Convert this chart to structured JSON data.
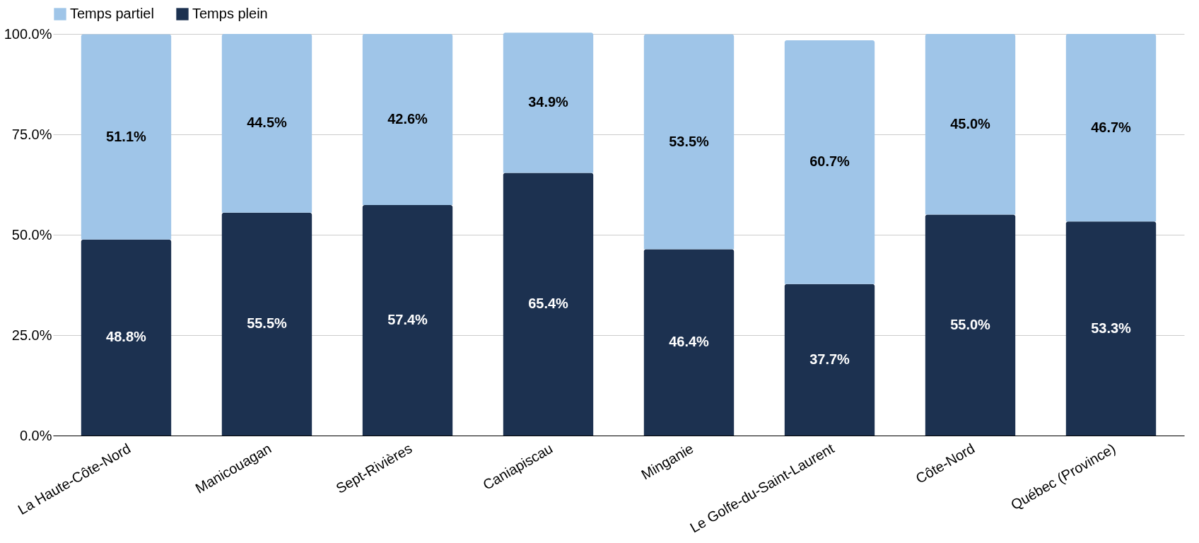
{
  "chart_data": {
    "type": "bar",
    "stacked": true,
    "categories": [
      "La Haute-Côte-Nord",
      "Manicouagan",
      "Sept-Rivières",
      "Caniapiscau",
      "Minganie",
      "Le Golfe-du-Saint-Laurent",
      "Côte-Nord",
      "Québec (Province)"
    ],
    "series": [
      {
        "name": "Temps plein",
        "color": "#1c3150",
        "values": [
          48.8,
          55.5,
          57.4,
          65.4,
          46.4,
          37.7,
          55.0,
          53.3
        ],
        "value_labels": [
          "48.8%",
          "55.5%",
          "57.4%",
          "65.4%",
          "46.4%",
          "37.7%",
          "55.0%",
          "53.3%"
        ]
      },
      {
        "name": "Temps partiel",
        "color": "#9fc5e8",
        "values": [
          51.1,
          44.5,
          42.6,
          34.9,
          53.5,
          60.7,
          45.0,
          46.7
        ],
        "value_labels": [
          "51.1%",
          "44.5%",
          "42.6%",
          "34.9%",
          "53.5%",
          "60.7%",
          "45.0%",
          "46.7%"
        ]
      }
    ],
    "ylim": [
      0,
      100
    ],
    "yticks": [
      {
        "value": 0,
        "label": "0.0%"
      },
      {
        "value": 25,
        "label": "25.0%"
      },
      {
        "value": 50,
        "label": "50.0%"
      },
      {
        "value": 75,
        "label": "75.0%"
      },
      {
        "value": 100,
        "label": "100.0%"
      }
    ],
    "grid": "y",
    "legend": "top"
  }
}
